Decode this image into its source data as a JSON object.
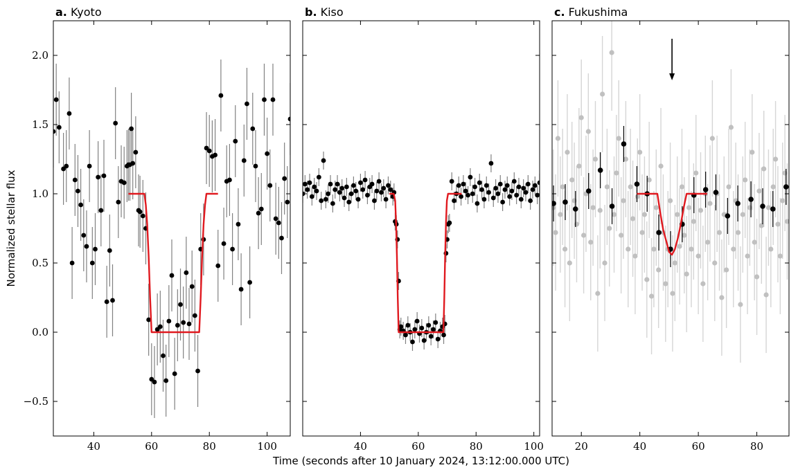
{
  "figure": {
    "xlabel": "Time (seconds after 10 January 2024, 13:12:00.000 UTC)",
    "ylabel": "Normalized stellar flux"
  },
  "chart_data": [
    {
      "type": "scatter",
      "letter": "a.",
      "title": "Kyoto",
      "xlim": [
        26,
        108
      ],
      "ylim": [
        -0.75,
        2.25
      ],
      "xticks": [
        40,
        60,
        80,
        100
      ],
      "yticks": [
        -0.5,
        0.0,
        0.5,
        1.0,
        1.5,
        2.0
      ],
      "ytick_labels": [
        "−0.5",
        "0.0",
        "0.5",
        "1.0",
        "1.5",
        "2.0"
      ],
      "colors": {
        "points": "#000000",
        "errorbars": "#808080",
        "model": "#e0191f"
      },
      "series": [
        {
          "kind": "points",
          "x": [
            26,
            27,
            28,
            29.5,
            30.5,
            31.5,
            32.5,
            33.5,
            34.5,
            35.5,
            36.5,
            37.5,
            38.5,
            39.5,
            40.5,
            41.5,
            42.5,
            43.5,
            44.5,
            45.5,
            46.5,
            47.5,
            48.5,
            49.5,
            50.5,
            51.5,
            52,
            52.5,
            53,
            53.5,
            54.5,
            55.5,
            56,
            57,
            58,
            59,
            60,
            61,
            62,
            63,
            64,
            65,
            66,
            67,
            68,
            69,
            70,
            71,
            72,
            73,
            74,
            75,
            76,
            77,
            78,
            79,
            80,
            81,
            82,
            83,
            84,
            85,
            86,
            87,
            88,
            89,
            90,
            91,
            92,
            93,
            94,
            95,
            96,
            97,
            98,
            99,
            100,
            101,
            102,
            103,
            104,
            105,
            106,
            107,
            108
          ],
          "y": [
            1.45,
            1.68,
            1.48,
            1.18,
            1.2,
            1.58,
            0.5,
            1.1,
            1.02,
            0.92,
            0.7,
            0.62,
            1.2,
            0.5,
            0.6,
            1.12,
            0.88,
            1.13,
            0.22,
            0.59,
            0.23,
            1.51,
            0.94,
            1.09,
            1.08,
            1.2,
            1.21,
            1.21,
            1.47,
            1.22,
            1.3,
            0.88,
            0.87,
            0.84,
            0.75,
            0.09,
            -0.34,
            -0.36,
            0.02,
            0.04,
            -0.17,
            -0.35,
            0.08,
            0.41,
            -0.3,
            0.05,
            0.2,
            0.07,
            0.43,
            0.06,
            0.33,
            0.12,
            -0.28,
            0.6,
            0.67,
            1.33,
            1.31,
            1.27,
            1.28,
            0.48,
            1.71,
            0.64,
            1.09,
            1.1,
            0.6,
            1.38,
            0.78,
            0.31,
            1.24,
            1.65,
            0.36,
            1.47,
            1.2,
            0.86,
            0.89,
            1.68,
            1.29,
            1.06,
            1.68,
            0.82,
            0.79,
            0.68,
            1.11,
            0.94,
            1.54
          ],
          "yerr": 0.26
        },
        {
          "kind": "model",
          "x": [
            52,
            57.5,
            58,
            58.5,
            59,
            59.5,
            60,
            76.5,
            77,
            77.5,
            78,
            78.5,
            79,
            83
          ],
          "y": [
            1.0,
            1.0,
            0.92,
            0.78,
            0.55,
            0.25,
            0.0,
            0.0,
            0.25,
            0.55,
            0.78,
            0.92,
            1.0,
            1.0
          ]
        }
      ]
    },
    {
      "type": "scatter",
      "letter": "b.",
      "title": "Kiso",
      "xlim": [
        20,
        102
      ],
      "ylim": [
        -0.75,
        2.25
      ],
      "xticks": [
        40,
        60,
        80,
        100
      ],
      "yticks": [
        -0.5,
        0.0,
        0.5,
        1.0,
        1.5,
        2.0
      ],
      "colors": {
        "points": "#000000",
        "errorbars": "#808080",
        "model": "#e0191f"
      },
      "series": [
        {
          "kind": "points",
          "x": [
            20.0,
            20.8,
            21.6,
            22.4,
            23.2,
            24.0,
            24.8,
            25.6,
            26.4,
            27.2,
            28.0,
            28.8,
            29.6,
            30.4,
            31.2,
            32.0,
            32.8,
            33.6,
            34.4,
            35.2,
            36.0,
            36.8,
            37.6,
            38.4,
            39.2,
            40.0,
            40.8,
            41.6,
            42.4,
            43.2,
            44.0,
            44.8,
            45.6,
            46.4,
            47.2,
            48.0,
            48.8,
            49.6,
            50.4,
            51.2,
            51.6,
            52.0,
            52.4,
            52.8,
            53.2,
            53.6,
            54.0,
            54.8,
            55.6,
            56.4,
            57.2,
            58.0,
            58.8,
            59.6,
            60.4,
            61.2,
            62.0,
            62.8,
            63.6,
            64.4,
            65.2,
            66.0,
            66.8,
            67.6,
            68.4,
            68.8,
            69.2,
            69.6,
            70.0,
            70.4,
            70.8,
            71.6,
            72.4,
            73.2,
            74.0,
            74.8,
            75.6,
            76.4,
            77.2,
            78.0,
            78.8,
            79.6,
            80.4,
            81.2,
            82.0,
            82.8,
            83.6,
            84.4,
            85.2,
            86.0,
            86.8,
            87.6,
            88.4,
            89.2,
            90.0,
            90.8,
            91.6,
            92.4,
            93.2,
            94.0,
            94.8,
            95.6,
            96.4,
            97.2,
            98.0,
            98.8,
            99.6,
            100.4,
            101.2,
            102.0
          ],
          "y": [
            1.0,
            1.07,
            1.03,
            1.08,
            0.98,
            1.05,
            1.02,
            1.12,
            0.95,
            1.24,
            0.96,
            1.0,
            1.07,
            0.93,
            1.03,
            1.07,
            1.01,
            1.04,
            0.97,
            1.05,
            0.94,
            1.0,
            1.06,
            1.02,
            0.96,
            1.08,
            1.03,
            1.1,
            0.99,
            1.05,
            1.07,
            0.95,
            1.02,
            1.09,
            1.01,
            1.04,
            0.96,
            1.06,
            1.03,
            0.98,
            1.01,
            0.8,
            0.78,
            0.67,
            0.37,
            0.02,
            0.04,
            0.01,
            -0.02,
            0.05,
            0.0,
            -0.07,
            0.02,
            0.08,
            -0.01,
            0.03,
            -0.06,
            0.0,
            0.05,
            -0.03,
            0.02,
            0.07,
            -0.05,
            0.01,
            0.04,
            -0.02,
            0.06,
            0.57,
            0.67,
            0.78,
            0.79,
            1.09,
            0.95,
            1.0,
            1.06,
            0.98,
            1.07,
            1.02,
            0.99,
            1.12,
            1.0,
            1.05,
            0.93,
            1.08,
            1.03,
            0.96,
            1.06,
            1.01,
            1.22,
            0.97,
            1.04,
            1.0,
            1.07,
            0.94,
            1.03,
            1.06,
            0.98,
            1.02,
            1.09,
            0.99,
            1.05,
            0.96,
            1.04,
            1.01,
            1.07,
            0.95,
            1.03,
            1.06,
            0.99,
            1.08
          ],
          "yerr": 0.065
        },
        {
          "kind": "model",
          "x": [
            50,
            51.5,
            52,
            52.3,
            52.6,
            52.9,
            53.2,
            68.7,
            69,
            69.3,
            69.6,
            69.9,
            70.3,
            75
          ],
          "y": [
            1.0,
            1.0,
            0.95,
            0.8,
            0.55,
            0.25,
            0.0,
            0.0,
            0.25,
            0.55,
            0.8,
            0.95,
            1.0,
            1.0
          ]
        }
      ]
    },
    {
      "type": "scatter",
      "letter": "c.",
      "title": "Fukushima",
      "xlim": [
        10,
        91
      ],
      "ylim": [
        -0.75,
        2.25
      ],
      "xticks": [
        20,
        40,
        60,
        80
      ],
      "yticks": [
        -0.5,
        0.0,
        0.5,
        1.0,
        1.5,
        2.0
      ],
      "arrow_x": 51,
      "arrow_y": [
        2.12,
        1.82
      ],
      "colors": {
        "points": "#000000",
        "errorbars": "#000000",
        "faint_points": "#c0c0c0",
        "faint_errorbars": "#d5d5d5",
        "model": "#e0191f"
      },
      "series": [
        {
          "kind": "faint_points",
          "x": [
            10.4,
            11.2,
            12.0,
            12.8,
            13.6,
            14.4,
            15.2,
            16.0,
            16.8,
            17.6,
            18.4,
            19.2,
            20.0,
            20.8,
            21.6,
            22.4,
            23.2,
            24.0,
            24.8,
            25.6,
            26.4,
            27.2,
            28.0,
            28.8,
            29.6,
            30.4,
            31.2,
            32.0,
            32.8,
            33.6,
            34.4,
            35.2,
            36.0,
            36.8,
            37.6,
            38.4,
            39.2,
            40.0,
            40.8,
            41.6,
            42.4,
            43.2,
            44.0,
            44.8,
            45.6,
            46.4,
            47.2,
            48.0,
            48.8,
            49.6,
            50.4,
            51.2,
            52.0,
            52.8,
            53.6,
            54.4,
            55.2,
            56.0,
            56.8,
            57.6,
            58.4,
            59.2,
            60.0,
            60.8,
            61.6,
            62.4,
            63.2,
            64.0,
            64.8,
            65.6,
            66.4,
            67.2,
            68.0,
            68.8,
            69.6,
            70.4,
            71.2,
            72.0,
            72.8,
            73.6,
            74.4,
            75.2,
            76.0,
            76.8,
            77.6,
            78.4,
            79.2,
            80.0,
            80.8,
            81.6,
            82.4,
            83.2,
            84.0,
            84.8,
            85.6,
            86.4,
            87.2,
            88.0,
            88.8,
            89.6,
            90.4
          ],
          "y": [
            0.9,
            0.72,
            1.4,
            0.85,
            1.05,
            0.6,
            1.3,
            0.5,
            1.1,
            0.95,
            0.78,
            1.2,
            1.55,
            0.7,
            1.0,
            1.45,
            0.65,
            0.9,
            1.25,
            0.28,
            0.88,
            1.72,
            0.5,
            1.05,
            0.75,
            2.02,
            0.85,
            1.15,
            1.4,
            0.7,
            0.95,
            1.25,
            0.6,
            1.05,
            0.82,
            0.55,
            0.98,
            1.3,
            0.72,
            0.85,
            0.38,
            1.1,
            0.26,
            0.6,
            0.9,
            0.45,
            1.2,
            0.72,
            0.35,
            0.6,
            0.95,
            0.28,
            0.5,
            0.85,
            0.62,
            1.05,
            0.7,
            0.42,
            0.9,
            0.6,
            0.8,
            1.15,
            0.55,
            0.88,
            0.35,
            1.0,
            0.65,
            0.93,
            1.4,
            0.5,
            1.0,
            0.72,
            0.25,
            0.85,
            0.45,
            1.05,
            1.48,
            0.6,
            0.95,
            0.72,
            0.2,
            0.85,
            1.1,
            0.55,
            0.9,
            1.3,
            0.65,
            0.4,
            1.02,
            0.77,
            1.18,
            0.27,
            0.9,
            0.6,
            1.05,
            1.25,
            0.78,
            0.55,
            0.95,
            1.15,
            0.8
          ],
          "yerr": 0.42
        },
        {
          "kind": "points",
          "x": [
            10.5,
            14.5,
            18,
            22.5,
            26.5,
            30.5,
            34.5,
            39,
            42.5,
            46.5,
            50.5,
            54.5,
            58.5,
            62.5,
            66,
            70,
            73.5,
            78,
            82,
            85.5,
            90
          ],
          "y": [
            0.93,
            0.94,
            0.89,
            1.02,
            1.17,
            0.91,
            1.36,
            1.07,
            1.0,
            0.72,
            0.6,
            0.78,
            0.99,
            1.03,
            1.01,
            0.84,
            0.93,
            0.96,
            0.91,
            0.89,
            1.05
          ],
          "yerr": 0.13
        },
        {
          "kind": "model",
          "x": [
            39,
            46,
            47,
            48,
            49,
            50,
            51,
            52,
            53,
            54,
            55,
            56,
            63
          ],
          "y": [
            1.0,
            1.0,
            0.86,
            0.74,
            0.66,
            0.58,
            0.56,
            0.6,
            0.68,
            0.78,
            0.9,
            1.0,
            1.0
          ]
        }
      ]
    }
  ]
}
